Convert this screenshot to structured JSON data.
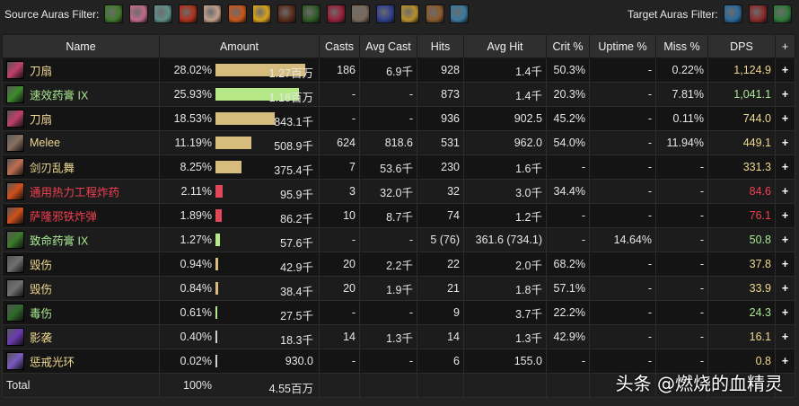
{
  "filters": {
    "source_label": "Source Auras Filter:",
    "target_label": "Target Auras Filter:",
    "source_auras": [
      {
        "icon": "green-swirl-icon",
        "color": "#3e7a2a"
      },
      {
        "icon": "pink-flower-icon",
        "color": "#c06a8a"
      },
      {
        "icon": "totem-face-icon",
        "color": "#5f8f8a"
      },
      {
        "icon": "red-wing-icon",
        "color": "#b0301c"
      },
      {
        "icon": "crossed-blade-icon",
        "color": "#c2a08a"
      },
      {
        "icon": "fire-bottle-icon",
        "color": "#c8561a"
      },
      {
        "icon": "golden-sun-icon",
        "color": "#d9a21c"
      },
      {
        "icon": "dark-claw-icon",
        "color": "#5a2a1a"
      },
      {
        "icon": "green-scythe-icon",
        "color": "#2f5a24"
      },
      {
        "icon": "crimson-fang-icon",
        "color": "#9a1f3a"
      },
      {
        "icon": "beast-paw-icon",
        "color": "#7a6a5a"
      },
      {
        "icon": "blue-shield-icon",
        "color": "#2f3f8f"
      },
      {
        "icon": "golden-beast-icon",
        "color": "#b8902a"
      },
      {
        "icon": "brown-mask-icon",
        "color": "#8a5a2a"
      },
      {
        "icon": "blue-crystal-icon",
        "color": "#3a7aa0"
      }
    ],
    "target_auras": [
      {
        "icon": "blue-vortex-icon",
        "color": "#2a6a9a"
      },
      {
        "icon": "red-arrow-icon",
        "color": "#8a2a2a"
      },
      {
        "icon": "green-spikes-icon",
        "color": "#2f7a3a"
      }
    ]
  },
  "table": {
    "headers": {
      "name": "Name",
      "amount": "Amount",
      "casts": "Casts",
      "avg_cast": "Avg Cast",
      "hits": "Hits",
      "avg_hit": "Avg Hit",
      "crit": "Crit %",
      "uptime": "Uptime %",
      "miss": "Miss %",
      "dps": "DPS",
      "plus": "+"
    },
    "rows": [
      {
        "icon": "pink-blade-icon",
        "icon_color": "#c0406a",
        "name": "刀扇",
        "name_color": "#f0d890",
        "pct": "28.02%",
        "bar_value": 28.02,
        "bar_color": "#d6bd7e",
        "amount": "1.27百万",
        "casts": "186",
        "avg_cast": "6.9千",
        "hits": "928",
        "avg_hit": "1.4千",
        "crit": "50.3%",
        "uptime": "-",
        "miss": "0.22%",
        "dps": "1,124.9",
        "dps_color": "#f0d890",
        "plus": "+"
      },
      {
        "icon": "green-dagger-icon",
        "icon_color": "#3c8a2c",
        "name": "速效药膏 IX",
        "name_color": "#a8e890",
        "pct": "25.93%",
        "bar_value": 25.93,
        "bar_color": "#b6e887",
        "amount": "1.18百万",
        "casts": "-",
        "avg_cast": "-",
        "hits": "873",
        "avg_hit": "1.4千",
        "crit": "20.3%",
        "uptime": "-",
        "miss": "7.81%",
        "dps": "1,041.1",
        "dps_color": "#a8e890",
        "plus": "+"
      },
      {
        "icon": "pink-blade-icon",
        "icon_color": "#c0406a",
        "name": "刀扇",
        "name_color": "#f0d890",
        "pct": "18.53%",
        "bar_value": 18.53,
        "bar_color": "#d6bd7e",
        "amount": "843.1千",
        "casts": "-",
        "avg_cast": "-",
        "hits": "936",
        "avg_hit": "902.5",
        "crit": "45.2%",
        "uptime": "-",
        "miss": "0.11%",
        "dps": "744.0",
        "dps_color": "#f0d890",
        "plus": "+"
      },
      {
        "icon": "crossed-swords-icon",
        "icon_color": "#8a7060",
        "name": "Melee",
        "name_color": "#f0d890",
        "pct": "11.19%",
        "bar_value": 11.19,
        "bar_color": "#d6bd7e",
        "amount": "508.9千",
        "casts": "624",
        "avg_cast": "818.6",
        "hits": "531",
        "avg_hit": "962.0",
        "crit": "54.0%",
        "uptime": "-",
        "miss": "11.94%",
        "dps": "449.1",
        "dps_color": "#f0d890",
        "plus": "+"
      },
      {
        "icon": "blade-flurry-icon",
        "icon_color": "#c07050",
        "name": "剑刃乱舞",
        "name_color": "#f0d890",
        "pct": "8.25%",
        "bar_value": 8.25,
        "bar_color": "#d6bd7e",
        "amount": "375.4千",
        "casts": "7",
        "avg_cast": "53.6千",
        "hits": "230",
        "avg_hit": "1.6千",
        "crit": "-",
        "uptime": "-",
        "miss": "-",
        "dps": "331.3",
        "dps_color": "#f0d890",
        "plus": "+"
      },
      {
        "icon": "fire-bomb-icon",
        "icon_color": "#d0501a",
        "name": "通用热力工程炸药",
        "name_color": "#f04050",
        "pct": "2.11%",
        "bar_value": 2.11,
        "bar_color": "#e0485a",
        "amount": "95.9千",
        "casts": "3",
        "avg_cast": "32.0千",
        "hits": "32",
        "avg_hit": "3.0千",
        "crit": "34.4%",
        "uptime": "-",
        "miss": "-",
        "dps": "84.6",
        "dps_color": "#f04050",
        "plus": "+"
      },
      {
        "icon": "fire-bomb-icon",
        "icon_color": "#d0501a",
        "name": "萨隆邪铁炸弹",
        "name_color": "#f04050",
        "pct": "1.89%",
        "bar_value": 1.89,
        "bar_color": "#e0485a",
        "amount": "86.2千",
        "casts": "10",
        "avg_cast": "8.7千",
        "hits": "74",
        "avg_hit": "1.2千",
        "crit": "-",
        "uptime": "-",
        "miss": "-",
        "dps": "76.1",
        "dps_color": "#f04050",
        "plus": "+"
      },
      {
        "icon": "green-fang-icon",
        "icon_color": "#3a7a2a",
        "name": "致命药膏 IX",
        "name_color": "#a8e890",
        "pct": "1.27%",
        "bar_value": 1.27,
        "bar_color": "#b6e887",
        "amount": "57.6千",
        "casts": "-",
        "avg_cast": "-",
        "hits": "5 (76)",
        "avg_hit": "361.6 (734.1)",
        "crit": "-",
        "uptime": "14.64%",
        "miss": "-",
        "dps": "50.8",
        "dps_color": "#a8e890",
        "plus": "+"
      },
      {
        "icon": "cross-blades-icon",
        "icon_color": "#707070",
        "name": "毁伤",
        "name_color": "#f0d890",
        "pct": "0.94%",
        "bar_value": 0.94,
        "bar_color": "#d6bd7e",
        "amount": "42.9千",
        "casts": "20",
        "avg_cast": "2.2千",
        "hits": "22",
        "avg_hit": "2.0千",
        "crit": "68.2%",
        "uptime": "-",
        "miss": "-",
        "dps": "37.8",
        "dps_color": "#f0d890",
        "plus": "+"
      },
      {
        "icon": "cross-blades-icon",
        "icon_color": "#707070",
        "name": "毁伤",
        "name_color": "#f0d890",
        "pct": "0.84%",
        "bar_value": 0.84,
        "bar_color": "#d6bd7e",
        "amount": "38.4千",
        "casts": "20",
        "avg_cast": "1.9千",
        "hits": "21",
        "avg_hit": "1.8千",
        "crit": "57.1%",
        "uptime": "-",
        "miss": "-",
        "dps": "33.9",
        "dps_color": "#f0d890",
        "plus": "+"
      },
      {
        "icon": "green-claw-icon",
        "icon_color": "#2f6a2a",
        "name": "毒伤",
        "name_color": "#a8e890",
        "pct": "0.61%",
        "bar_value": 0.61,
        "bar_color": "#b6e887",
        "amount": "27.5千",
        "casts": "-",
        "avg_cast": "-",
        "hits": "9",
        "avg_hit": "3.7千",
        "crit": "22.2%",
        "uptime": "-",
        "miss": "-",
        "dps": "24.3",
        "dps_color": "#a8e890",
        "plus": "+"
      },
      {
        "icon": "shadow-strike-icon",
        "icon_color": "#6a3ab0",
        "name": "影袭",
        "name_color": "#f0d890",
        "pct": "0.40%",
        "bar_value": 0.4,
        "bar_color": "#d0d0d0",
        "amount": "18.3千",
        "casts": "14",
        "avg_cast": "1.3千",
        "hits": "14",
        "avg_hit": "1.3千",
        "crit": "42.9%",
        "uptime": "-",
        "miss": "-",
        "dps": "16.1",
        "dps_color": "#f0d890",
        "plus": "+"
      },
      {
        "icon": "purple-halo-icon",
        "icon_color": "#7a5ac0",
        "name": "惩戒光环",
        "name_color": "#f0d890",
        "pct": "0.02%",
        "bar_value": 0.02,
        "bar_color": "#d0d0d0",
        "amount": "930.0",
        "casts": "-",
        "avg_cast": "-",
        "hits": "6",
        "avg_hit": "155.0",
        "crit": "-",
        "uptime": "-",
        "miss": "-",
        "dps": "0.8",
        "dps_color": "#f0d890",
        "plus": "+"
      }
    ],
    "total": {
      "label": "Total",
      "pct": "100%",
      "amount": "4.55百万"
    }
  },
  "watermark": "头条 @燃烧的血精灵"
}
